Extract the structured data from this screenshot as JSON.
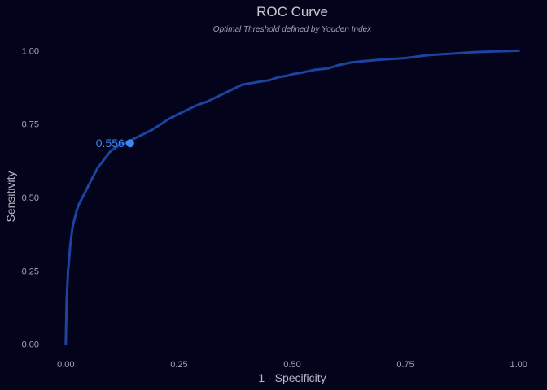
{
  "chart_data": {
    "type": "line",
    "title": "ROC Curve",
    "subtitle": "Optimal Threshold defined by Youden Index",
    "xlabel": "1 - Specificity",
    "ylabel": "Sensitivity",
    "xlim": [
      -0.05,
      1.05
    ],
    "ylim": [
      -0.04,
      1.04
    ],
    "x_ticks": [
      0.0,
      0.25,
      0.5,
      0.75,
      1.0
    ],
    "x_tick_labels": [
      "0.00",
      "0.25",
      "0.50",
      "0.75",
      "1.00"
    ],
    "y_ticks": [
      0.0,
      0.25,
      0.5,
      0.75,
      1.0
    ],
    "y_tick_labels": [
      "0.00",
      "0.25",
      "0.50",
      "0.75",
      "1.00"
    ],
    "grid": false,
    "series": [
      {
        "color": "#1d43a0",
        "x": [
          0.0,
          0.002,
          0.005,
          0.008,
          0.01,
          0.015,
          0.02,
          0.025,
          0.03,
          0.04,
          0.05,
          0.06,
          0.07,
          0.08,
          0.09,
          0.1,
          0.11,
          0.12,
          0.13,
          0.14,
          0.15,
          0.17,
          0.19,
          0.21,
          0.23,
          0.25,
          0.27,
          0.29,
          0.31,
          0.33,
          0.35,
          0.37,
          0.39,
          0.41,
          0.43,
          0.45,
          0.47,
          0.49,
          0.5,
          0.52,
          0.55,
          0.58,
          0.6,
          0.63,
          0.66,
          0.7,
          0.75,
          0.8,
          0.85,
          0.9,
          0.95,
          1.0
        ],
        "y": [
          0.0,
          0.15,
          0.25,
          0.3,
          0.34,
          0.4,
          0.43,
          0.46,
          0.48,
          0.51,
          0.54,
          0.57,
          0.6,
          0.62,
          0.64,
          0.66,
          0.67,
          0.68,
          0.685,
          0.69,
          0.7,
          0.715,
          0.73,
          0.75,
          0.77,
          0.785,
          0.8,
          0.815,
          0.825,
          0.84,
          0.855,
          0.87,
          0.885,
          0.89,
          0.895,
          0.9,
          0.91,
          0.915,
          0.92,
          0.925,
          0.935,
          0.94,
          0.95,
          0.96,
          0.965,
          0.97,
          0.975,
          0.985,
          0.99,
          0.995,
          0.998,
          1.0
        ]
      }
    ],
    "optimal_point": {
      "x": 0.142,
      "y": 0.685,
      "label": "0.556",
      "color": "#3f86f0"
    }
  }
}
